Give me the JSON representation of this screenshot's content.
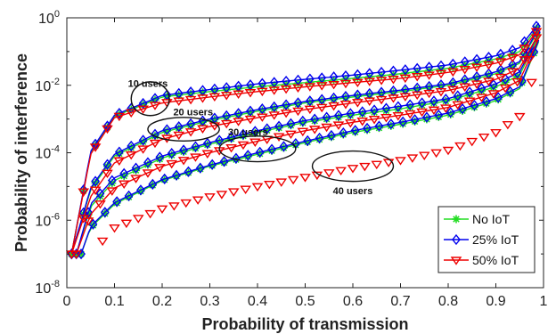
{
  "chart_data": {
    "type": "line",
    "title": "",
    "xlabel": "Probability of transmission",
    "ylabel": "Probability of interference",
    "xlim": [
      0,
      1
    ],
    "ylim": [
      1e-08,
      1
    ],
    "yscale": "log",
    "x_ticks": [
      "0",
      "0.1",
      "0.2",
      "0.3",
      "0.4",
      "0.5",
      "0.6",
      "0.7",
      "0.8",
      "0.9",
      "1"
    ],
    "y_ticks": [
      {
        "base": "10",
        "exp": "-8"
      },
      {
        "base": "10",
        "exp": "-6"
      },
      {
        "base": "10",
        "exp": "-4"
      },
      {
        "base": "10",
        "exp": "-2"
      },
      {
        "base": "10",
        "exp": "0"
      }
    ],
    "grid": false,
    "legend_position": "bottom-right",
    "legend": [
      {
        "label": "No IoT",
        "color": "#22dd22",
        "marker": "asterisk"
      },
      {
        "label": "25% IoT",
        "color": "#0000ee",
        "marker": "diamond"
      },
      {
        "label": "50% IoT",
        "color": "#ee0000",
        "marker": "triangle-down"
      }
    ],
    "annotations": [
      "10 users",
      "20 users",
      "30 users",
      "40 users"
    ],
    "x": [
      0.01,
      0.05,
      0.1,
      0.2,
      0.3,
      0.4,
      0.5,
      0.6,
      0.7,
      0.8,
      0.9,
      0.95,
      0.99
    ],
    "series": [
      {
        "users": "10 users",
        "iot": "No IoT",
        "start_x": 0.01,
        "values": [
          1e-07,
          0.0001,
          0.0012,
          0.0045,
          0.0065,
          0.009,
          0.012,
          0.016,
          0.022,
          0.032,
          0.06,
          0.1,
          0.6
        ]
      },
      {
        "users": "10 users",
        "iot": "25% IoT",
        "start_x": 0.01,
        "values": [
          1e-07,
          0.00011,
          0.0013,
          0.005,
          0.0075,
          0.011,
          0.015,
          0.02,
          0.028,
          0.04,
          0.075,
          0.13,
          0.7
        ]
      },
      {
        "users": "10 users",
        "iot": "50% IoT",
        "start_x": 0.01,
        "values": [
          1e-07,
          9e-05,
          0.0011,
          0.003,
          0.0045,
          0.0065,
          0.009,
          0.012,
          0.016,
          0.024,
          0.045,
          0.08,
          0.5
        ]
      },
      {
        "users": "20 users",
        "iot": "No IoT",
        "start_x": 0.01,
        "values": [
          1e-07,
          8e-06,
          8e-05,
          0.0004,
          0.0009,
          0.0017,
          0.003,
          0.0045,
          0.0065,
          0.01,
          0.022,
          0.045,
          0.45
        ]
      },
      {
        "users": "20 users",
        "iot": "25% IoT",
        "start_x": 0.01,
        "values": [
          1e-07,
          9e-06,
          9e-05,
          0.00045,
          0.001,
          0.0019,
          0.0033,
          0.005,
          0.0072,
          0.011,
          0.025,
          0.05,
          0.5
        ]
      },
      {
        "users": "20 users",
        "iot": "50% IoT",
        "start_x": 0.01,
        "values": [
          1e-07,
          5e-06,
          5e-05,
          0.00025,
          0.0006,
          0.0011,
          0.0019,
          0.003,
          0.0045,
          0.007,
          0.015,
          0.032,
          0.35
        ]
      },
      {
        "users": "30 users",
        "iot": "No IoT",
        "start_x": 0.02,
        "values": [
          1e-07,
          2.5e-06,
          1.5e-05,
          7e-05,
          0.00018,
          0.0004,
          0.0008,
          0.0013,
          0.002,
          0.0035,
          0.009,
          0.02,
          0.3
        ]
      },
      {
        "users": "30 users",
        "iot": "25% IoT",
        "start_x": 0.02,
        "values": [
          1e-07,
          3e-06,
          1.8e-05,
          8e-05,
          0.0002,
          0.00045,
          0.0009,
          0.0015,
          0.0024,
          0.004,
          0.011,
          0.025,
          0.35
        ]
      },
      {
        "users": "30 users",
        "iot": "50% IoT",
        "start_x": 0.02,
        "values": [
          1e-07,
          1.5e-06,
          9e-06,
          4e-05,
          0.0001,
          0.00022,
          0.00045,
          0.0008,
          0.0013,
          0.0022,
          0.006,
          0.014,
          0.25
        ]
      },
      {
        "users": "40 users",
        "iot": "No IoT",
        "start_x": 0.03,
        "values": [
          1e-07,
          6e-07,
          3e-06,
          1.5e-05,
          4e-05,
          9e-05,
          0.0002,
          0.0004,
          0.0007,
          0.0013,
          0.0035,
          0.008,
          0.2
        ]
      },
      {
        "users": "40 users",
        "iot": "25% IoT",
        "start_x": 0.03,
        "values": [
          1e-07,
          6.5e-07,
          3.3e-06,
          1.6e-05,
          4.3e-05,
          0.0001,
          0.00022,
          0.00045,
          0.0008,
          0.0015,
          0.004,
          0.009,
          0.22
        ]
      },
      {
        "users": "40 users",
        "iot": "50% IoT",
        "start_x": 0.05,
        "values": [
          1e-07,
          1e-07,
          6e-07,
          2.2e-06,
          5e-06,
          1e-05,
          1.9e-05,
          3.5e-05,
          6e-05,
          0.00012,
          0.0004,
          0.0012,
          0.05
        ]
      }
    ]
  }
}
